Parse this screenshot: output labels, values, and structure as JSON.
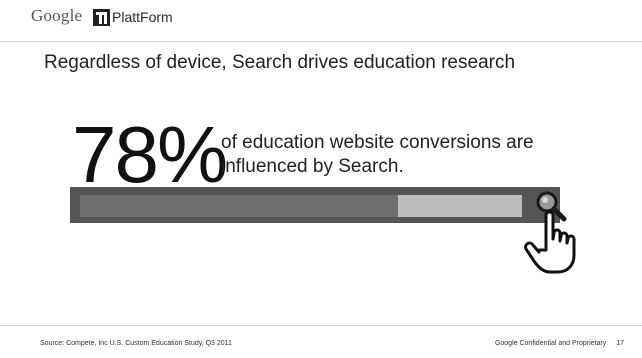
{
  "header": {
    "google_logo": "Google",
    "platt_logo": "PlattForm"
  },
  "slide": {
    "title": "Regardless of device, Search drives education research",
    "stat_value": "78%",
    "stat_text": "of education website conversions are influenced by Search.",
    "progress_fraction": 0.72
  },
  "footer": {
    "source": "Source: Compete, Inc U.S. Custom Education Study, Q3 2011",
    "confidentiality": "Google Confidential and Proprietary",
    "page_number": "17"
  },
  "icons": {
    "magnifier": "magnifier-icon",
    "hand": "pointing-hand-icon"
  }
}
